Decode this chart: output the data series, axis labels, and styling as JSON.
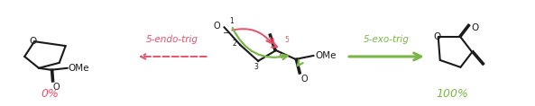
{
  "bg_color": "#ffffff",
  "black": "#1a1a1a",
  "red_color": "#e8526a",
  "green_color": "#7ab648",
  "left_percent": "0%",
  "right_percent": "100%",
  "label_endo": "5-endo-trig",
  "label_exo": "5-exo-trig",
  "figsize": [
    5.93,
    1.18
  ],
  "dpi": 100
}
